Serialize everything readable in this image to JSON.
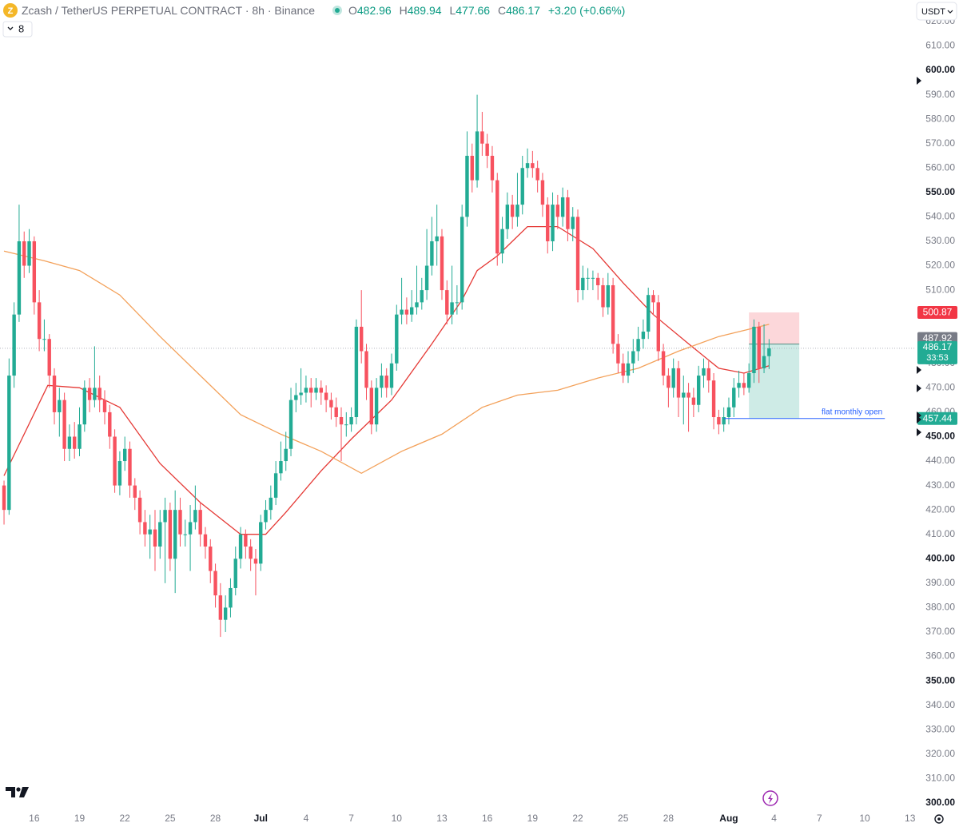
{
  "header": {
    "symbol": "Zcash / TetherUS PERPETUAL CONTRACT",
    "interval": "8h",
    "exchange": "Binance",
    "ohlc": [
      {
        "label": "O",
        "value": "482.96"
      },
      {
        "label": "H",
        "value": "489.94"
      },
      {
        "label": "L",
        "value": "477.66"
      },
      {
        "label": "C",
        "value": "486.17"
      }
    ],
    "change": "+3.20 (+0.66%)",
    "indicator": "8",
    "currency": "USDT"
  },
  "chart_data": {
    "type": "candlestick",
    "up_color": "#22ab94",
    "down_color": "#f7525f",
    "xlim": [
      -0.8,
      181
    ],
    "ylim": [
      296.7,
      628.8
    ],
    "grid": false,
    "xticks": [
      {
        "value": 6,
        "label": "16"
      },
      {
        "value": 15,
        "label": "19"
      },
      {
        "value": 24,
        "label": "22"
      },
      {
        "value": 33,
        "label": "25"
      },
      {
        "value": 42,
        "label": "28"
      },
      {
        "value": 51,
        "label": "Jul"
      },
      {
        "value": 60,
        "label": "4"
      },
      {
        "value": 69,
        "label": "7"
      },
      {
        "value": 78,
        "label": "10"
      },
      {
        "value": 87,
        "label": "13"
      },
      {
        "value": 96,
        "label": "16"
      },
      {
        "value": 105,
        "label": "19"
      },
      {
        "value": 114,
        "label": "22"
      },
      {
        "value": 123,
        "label": "25"
      },
      {
        "value": 132,
        "label": "28"
      },
      {
        "value": 144,
        "label": "Aug"
      },
      {
        "value": 153,
        "label": "4"
      },
      {
        "value": 162,
        "label": "7"
      },
      {
        "value": 171,
        "label": "10"
      },
      {
        "value": 180,
        "label": "13"
      }
    ],
    "yticks": [
      {
        "value": 300,
        "label": "300.00"
      },
      {
        "value": 310,
        "label": "310.00"
      },
      {
        "value": 320,
        "label": "320.00"
      },
      {
        "value": 330,
        "label": "330.00"
      },
      {
        "value": 340,
        "label": "340.00"
      },
      {
        "value": 350,
        "label": "350.00"
      },
      {
        "value": 360,
        "label": "360.00"
      },
      {
        "value": 370,
        "label": "370.00"
      },
      {
        "value": 380,
        "label": "380.00"
      },
      {
        "value": 390,
        "label": "390.00"
      },
      {
        "value": 400,
        "label": "400.00"
      },
      {
        "value": 410,
        "label": "410.00"
      },
      {
        "value": 420,
        "label": "420.00"
      },
      {
        "value": 430,
        "label": "430.00"
      },
      {
        "value": 440,
        "label": "440.00"
      },
      {
        "value": 450,
        "label": "450.00"
      },
      {
        "value": 460,
        "label": "460.00"
      },
      {
        "value": 470,
        "label": "470.00"
      },
      {
        "value": 480,
        "label": "480.00"
      },
      {
        "value": 490,
        "label": "490.00"
      },
      {
        "value": 500,
        "label": "500.00"
      },
      {
        "value": 510,
        "label": "510.00"
      },
      {
        "value": 520,
        "label": "520.00"
      },
      {
        "value": 530,
        "label": "530.00"
      },
      {
        "value": 540,
        "label": "540.00"
      },
      {
        "value": 550,
        "label": "550.00"
      },
      {
        "value": 560,
        "label": "560.00"
      },
      {
        "value": 570,
        "label": "570.00"
      },
      {
        "value": 580,
        "label": "580.00"
      },
      {
        "value": 590,
        "label": "590.00"
      },
      {
        "value": 600,
        "label": "600.00"
      },
      {
        "value": 610,
        "label": "610.00"
      },
      {
        "value": 620,
        "label": "620.00"
      }
    ],
    "open": [
      430,
      420,
      475,
      500,
      530,
      520,
      530,
      505,
      490,
      490,
      475,
      460,
      465,
      445,
      450,
      445,
      455,
      470,
      465,
      470,
      465,
      460,
      450,
      430,
      440,
      445,
      430,
      425,
      415,
      410,
      412,
      405,
      415,
      420,
      400,
      420,
      410,
      410,
      415,
      420,
      410,
      405,
      395,
      385,
      375,
      380,
      388,
      400,
      410,
      405,
      400,
      398,
      415,
      420,
      425,
      435,
      440,
      445,
      465,
      467,
      468,
      470,
      468,
      470,
      468,
      465,
      462,
      458,
      455,
      455,
      458,
      495,
      485,
      470,
      455,
      470,
      475,
      470,
      480,
      500,
      502,
      500,
      503,
      505,
      510,
      520,
      530,
      532,
      510,
      500,
      505,
      505,
      540,
      565,
      555,
      575,
      570,
      565,
      555,
      525,
      535,
      545,
      540,
      545,
      560,
      562,
      560,
      555,
      545,
      530,
      545,
      540,
      548,
      535,
      540,
      510,
      515,
      515,
      515,
      512,
      503,
      512,
      488,
      480,
      475,
      480,
      485,
      490,
      493,
      508,
      505,
      485,
      475,
      470,
      478,
      466,
      468,
      466,
      463,
      475,
      478,
      473,
      458,
      455,
      458,
      462,
      470,
      472,
      470,
      476,
      495,
      478,
      482.96
    ],
    "high": [
      432,
      482,
      505,
      545,
      534,
      535,
      532,
      510,
      498,
      492,
      478,
      470,
      468,
      455,
      456,
      462,
      473,
      474,
      487,
      475,
      469,
      463,
      453,
      444,
      450,
      448,
      433,
      428,
      420,
      418,
      420,
      420,
      425,
      423,
      428,
      425,
      416,
      422,
      430,
      423,
      413,
      408,
      398,
      390,
      385,
      392,
      405,
      413,
      412,
      408,
      404,
      418,
      424,
      430,
      440,
      448,
      452,
      470,
      472,
      478,
      475,
      474,
      474,
      473,
      471,
      468,
      466,
      462,
      460,
      462,
      498,
      510,
      488,
      473,
      474,
      480,
      478,
      484,
      504,
      515,
      507,
      510,
      520,
      515,
      535,
      540,
      545,
      535,
      514,
      520,
      512,
      545,
      575,
      570,
      590,
      583,
      574,
      569,
      558,
      540,
      550,
      549,
      558,
      565,
      568,
      567,
      563,
      558,
      548,
      550,
      549,
      552,
      551,
      544,
      543,
      520,
      519,
      518,
      517,
      515,
      517,
      515,
      492,
      484,
      485,
      490,
      495,
      498,
      511,
      510,
      508,
      488,
      478,
      482,
      481,
      475,
      472,
      470,
      479,
      482,
      481,
      476,
      461,
      462,
      466,
      474,
      477,
      476,
      480,
      498,
      497,
      496,
      489.94
    ],
    "low": [
      414,
      418,
      470,
      497,
      515,
      517,
      500,
      485,
      485,
      470,
      455,
      450,
      440,
      440,
      441,
      442,
      452,
      460,
      462,
      460,
      455,
      445,
      427,
      426,
      436,
      425,
      420,
      410,
      405,
      400,
      395,
      400,
      390,
      395,
      386,
      405,
      405,
      395,
      412,
      405,
      400,
      390,
      380,
      368,
      370,
      376,
      385,
      396,
      400,
      395,
      385,
      395,
      412,
      416,
      422,
      432,
      436,
      442,
      460,
      463,
      464,
      462,
      465,
      463,
      460,
      457,
      454,
      440,
      450,
      452,
      455,
      480,
      465,
      451,
      452,
      466,
      466,
      467,
      477,
      496,
      496,
      497,
      500,
      502,
      506,
      516,
      520,
      506,
      496,
      496,
      500,
      502,
      536,
      550,
      552,
      565,
      560,
      550,
      520,
      521,
      531,
      535,
      536,
      541,
      556,
      556,
      550,
      540,
      525,
      526,
      535,
      536,
      530,
      530,
      505,
      506,
      510,
      510,
      506,
      499,
      500,
      484,
      476,
      472,
      472,
      476,
      481,
      486,
      490,
      500,
      481,
      471,
      462,
      466,
      458,
      455,
      452,
      458,
      460,
      470,
      468,
      453,
      451,
      452,
      455,
      458,
      466,
      467,
      468,
      472,
      472,
      476,
      477.66
    ],
    "close": [
      420,
      475,
      500,
      530,
      520,
      530,
      505,
      490,
      490,
      475,
      460,
      465,
      445,
      450,
      445,
      455,
      470,
      465,
      470,
      465,
      460,
      450,
      430,
      440,
      445,
      430,
      425,
      415,
      410,
      412,
      405,
      415,
      420,
      400,
      420,
      410,
      410,
      415,
      420,
      410,
      405,
      395,
      385,
      375,
      380,
      388,
      400,
      410,
      405,
      400,
      398,
      415,
      420,
      425,
      435,
      440,
      445,
      465,
      467,
      468,
      470,
      468,
      470,
      468,
      465,
      462,
      458,
      455,
      455,
      458,
      495,
      485,
      470,
      455,
      470,
      475,
      470,
      480,
      500,
      502,
      500,
      503,
      505,
      510,
      520,
      530,
      532,
      510,
      500,
      505,
      505,
      540,
      565,
      555,
      575,
      570,
      565,
      555,
      525,
      535,
      545,
      540,
      545,
      560,
      562,
      560,
      555,
      545,
      530,
      545,
      540,
      548,
      535,
      540,
      510,
      515,
      515,
      515,
      512,
      503,
      512,
      488,
      480,
      475,
      480,
      485,
      490,
      493,
      508,
      505,
      485,
      475,
      470,
      478,
      466,
      468,
      466,
      463,
      475,
      478,
      473,
      458,
      455,
      458,
      462,
      470,
      472,
      470,
      476,
      495,
      478,
      483,
      486.17
    ],
    "moving_averages": [
      {
        "color": "#e53935",
        "x": [
          0,
          8.7,
          15,
          23,
          31,
          39,
          47,
          52,
          56,
          63,
          69,
          77,
          85,
          91,
          94,
          98,
          104,
          110,
          117,
          123,
          129,
          136,
          142,
          147,
          152
        ],
        "values": [
          434,
          471,
          470,
          462,
          439,
          423,
          410,
          410,
          419,
          436,
          449,
          465,
          488,
          506,
          518,
          524,
          536,
          536,
          527,
          513,
          500,
          488,
          478,
          476,
          479
        ]
      },
      {
        "color": "#f3a15a",
        "x": [
          0,
          8,
          15,
          23,
          31,
          39,
          47,
          55,
          63,
          71,
          79,
          87,
          95,
          102,
          110,
          118,
          126,
          134,
          142,
          152
        ],
        "values": [
          526,
          522,
          518,
          508,
          491,
          475,
          459,
          451,
          444,
          435,
          444,
          451,
          462,
          467,
          469,
          474,
          478,
          485,
          491,
          496
        ]
      }
    ],
    "position": {
      "x": [
        148,
        158
      ],
      "stop": 500.87,
      "entry": 487.92,
      "target": 457.44
    },
    "last_price": 486.17,
    "countdown": "33:53",
    "monthly_open": {
      "label": "flat monthly open",
      "value": 457.44,
      "x": [
        143,
        175
      ]
    }
  }
}
